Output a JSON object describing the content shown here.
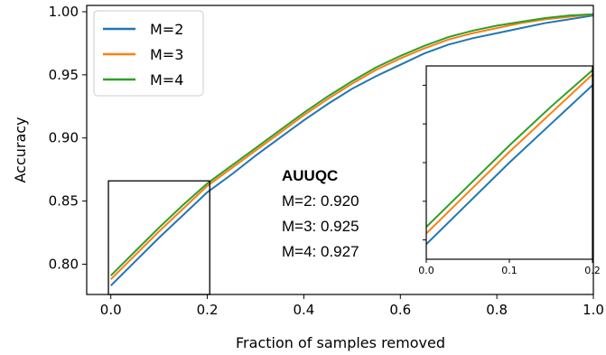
{
  "chart_data": {
    "type": "line",
    "xlabel": "Fraction of samples removed",
    "ylabel": "Accuracy",
    "xlim": [
      -0.05,
      1.0
    ],
    "ylim": [
      0.776,
      1.005
    ],
    "xticks": [
      "0.0",
      "0.2",
      "0.4",
      "0.6",
      "0.8",
      "1.0"
    ],
    "yticks": [
      "0.80",
      "0.85",
      "0.90",
      "0.95",
      "1.00"
    ],
    "grid": false,
    "legend": "top-left",
    "x": [
      0.0,
      0.05,
      0.1,
      0.15,
      0.2,
      0.25,
      0.3,
      0.35,
      0.4,
      0.45,
      0.5,
      0.55,
      0.6,
      0.65,
      0.7,
      0.75,
      0.8,
      0.85,
      0.9,
      0.95,
      1.0
    ],
    "series": [
      {
        "name": "M=2",
        "color": "#1f77b4",
        "values": [
          0.783,
          0.802,
          0.821,
          0.839,
          0.857,
          0.871,
          0.886,
          0.9,
          0.914,
          0.927,
          0.939,
          0.949,
          0.958,
          0.967,
          0.974,
          0.979,
          0.983,
          0.987,
          0.991,
          0.994,
          0.997
        ]
      },
      {
        "name": "M=3",
        "color": "#ff7f0e",
        "values": [
          0.788,
          0.807,
          0.826,
          0.844,
          0.862,
          0.876,
          0.89,
          0.904,
          0.918,
          0.931,
          0.943,
          0.954,
          0.963,
          0.971,
          0.978,
          0.983,
          0.987,
          0.991,
          0.994,
          0.996,
          0.998
        ]
      },
      {
        "name": "M=4",
        "color": "#2ca02c",
        "values": [
          0.791,
          0.81,
          0.829,
          0.847,
          0.864,
          0.878,
          0.892,
          0.906,
          0.92,
          0.933,
          0.945,
          0.956,
          0.965,
          0.973,
          0.98,
          0.985,
          0.989,
          0.992,
          0.995,
          0.997,
          0.998
        ]
      }
    ],
    "annotation": {
      "title": "AUUQC",
      "lines": [
        "M=2: 0.920",
        "M=3: 0.925",
        "M=4: 0.927"
      ]
    },
    "inset": {
      "xlim": [
        0.0,
        0.2
      ],
      "xticks": [
        "0.0",
        "0.1",
        "0.2"
      ],
      "zoom_box": {
        "x0": -0.005,
        "x1": 0.205,
        "y0": 0.776,
        "y1": 0.866
      }
    }
  }
}
